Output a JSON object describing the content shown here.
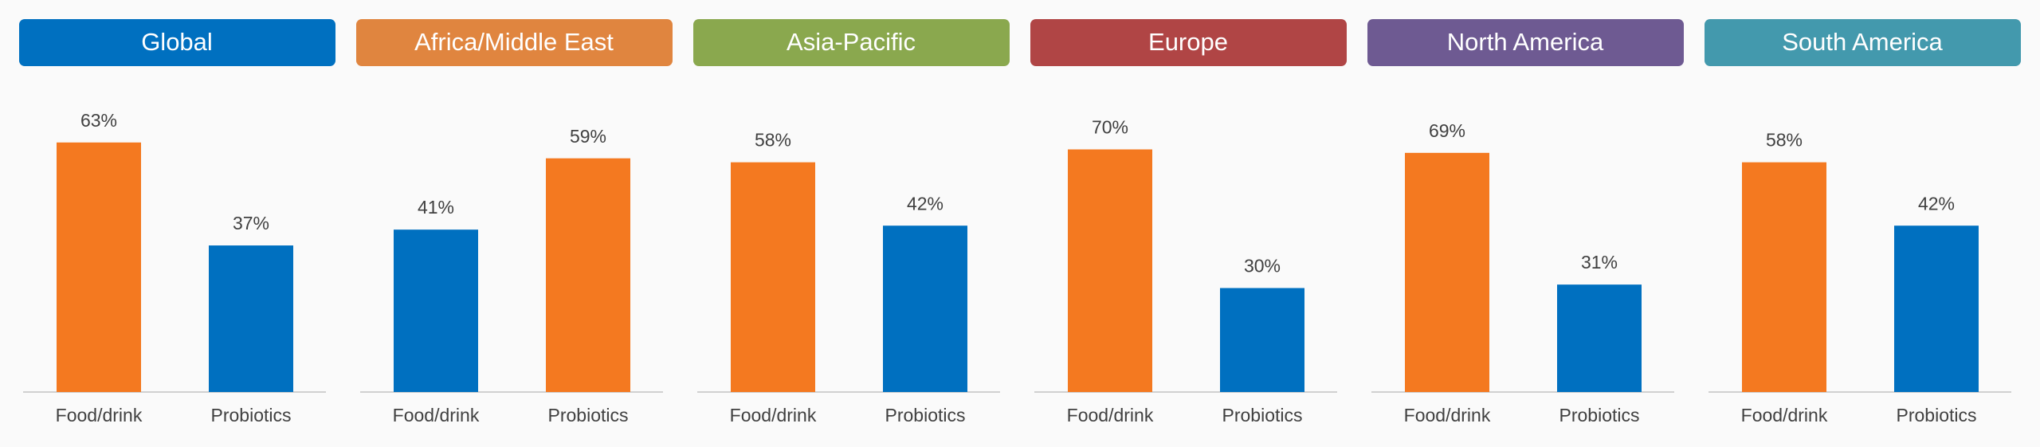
{
  "chart_data": [
    {
      "type": "bar",
      "title": "Global",
      "title_color": "#0070c0",
      "categories": [
        "Food/drink",
        "Probiotics"
      ],
      "values": [
        63,
        37
      ],
      "value_labels": [
        "63%",
        "37%"
      ],
      "colors": [
        "#f47920",
        "#0070c0"
      ],
      "ylim": [
        0,
        70
      ]
    },
    {
      "type": "bar",
      "title": "Africa/Middle East",
      "title_color": "#e0853f",
      "categories": [
        "Food/drink",
        "Probiotics"
      ],
      "values": [
        41,
        59
      ],
      "value_labels": [
        "41%",
        "59%"
      ],
      "colors": [
        "#0070c0",
        "#f47920"
      ],
      "ylim": [
        0,
        70
      ]
    },
    {
      "type": "bar",
      "title": "Asia-Pacific",
      "title_color": "#8aa84e",
      "categories": [
        "Food/drink",
        "Probiotics"
      ],
      "values": [
        58,
        42
      ],
      "value_labels": [
        "58%",
        "42%"
      ],
      "colors": [
        "#f47920",
        "#0070c0"
      ],
      "ylim": [
        0,
        70
      ]
    },
    {
      "type": "bar",
      "title": "Europe",
      "title_color": "#b04545",
      "categories": [
        "Food/drink",
        "Probiotics"
      ],
      "values": [
        70,
        30
      ],
      "value_labels": [
        "70%",
        "30%"
      ],
      "colors": [
        "#f47920",
        "#0070c0"
      ],
      "ylim": [
        0,
        80
      ]
    },
    {
      "type": "bar",
      "title": "North America",
      "title_color": "#6e5a92",
      "categories": [
        "Food/drink",
        "Probiotics"
      ],
      "values": [
        69,
        31
      ],
      "value_labels": [
        "69%",
        "31%"
      ],
      "colors": [
        "#f47920",
        "#0070c0"
      ],
      "ylim": [
        0,
        80
      ]
    },
    {
      "type": "bar",
      "title": "South America",
      "title_color": "#4399ad",
      "categories": [
        "Food/drink",
        "Probiotics"
      ],
      "values": [
        58,
        42
      ],
      "value_labels": [
        "58%",
        "42%"
      ],
      "colors": [
        "#f47920",
        "#0070c0"
      ],
      "ylim": [
        0,
        70
      ]
    }
  ]
}
